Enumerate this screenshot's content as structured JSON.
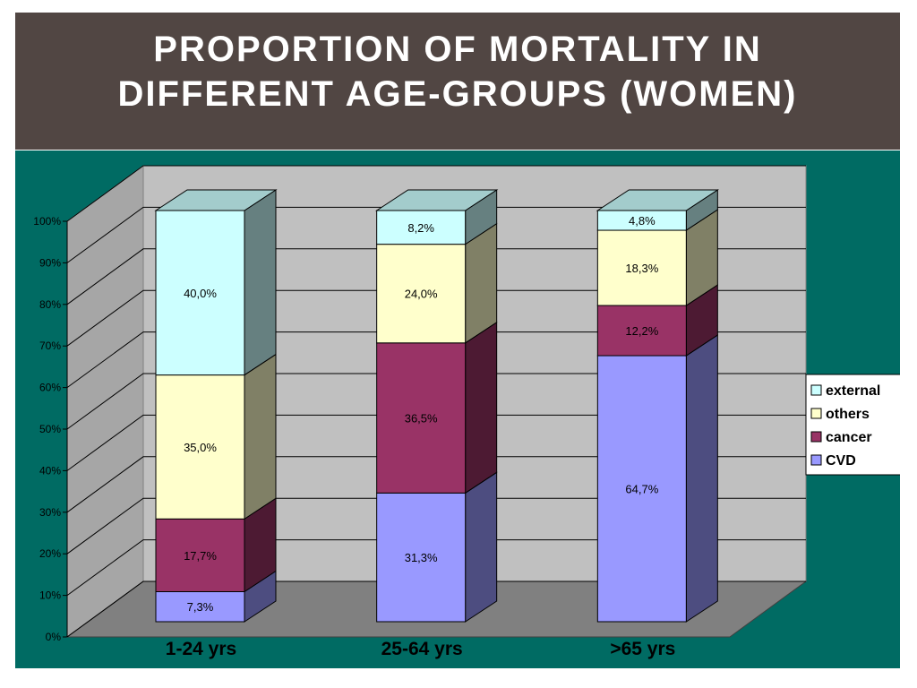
{
  "slide": {
    "title_line1": "PROPORTION OF MORTALITY IN",
    "title_line2": "DIFFERENT AGE-GROUPS (WOMEN)",
    "title_band_color": "#514643",
    "chart_bg_color": "#006b63"
  },
  "chart_data": {
    "type": "bar",
    "stacked": true,
    "three_d": true,
    "categories": [
      "1-24 yrs",
      "25-64 yrs",
      ">65 yrs"
    ],
    "series": [
      {
        "name": "CVD",
        "values": [
          7.3,
          31.3,
          64.7
        ],
        "labels": [
          "7,3%",
          "31,3%",
          "64,7%"
        ],
        "color": "#9999ff"
      },
      {
        "name": "cancer",
        "values": [
          17.7,
          36.5,
          12.2
        ],
        "labels": [
          "17,7%",
          "36,5%",
          "12,2%"
        ],
        "color": "#993366"
      },
      {
        "name": "others",
        "values": [
          35.0,
          24.0,
          18.3
        ],
        "labels": [
          "35,0%",
          "24,0%",
          "18,3%"
        ],
        "color": "#ffffcc"
      },
      {
        "name": "external",
        "values": [
          40.0,
          8.2,
          4.8
        ],
        "labels": [
          "40,0%",
          "8,2%",
          "4,8%"
        ],
        "color": "#ccffff"
      }
    ],
    "yticks": [
      "0%",
      "10%",
      "20%",
      "30%",
      "40%",
      "50%",
      "60%",
      "70%",
      "80%",
      "90%",
      "100%"
    ],
    "ylim": [
      0,
      100
    ],
    "grid": true,
    "legend_position": "right",
    "legend_order": [
      "external",
      "others",
      "cancer",
      "CVD"
    ]
  }
}
